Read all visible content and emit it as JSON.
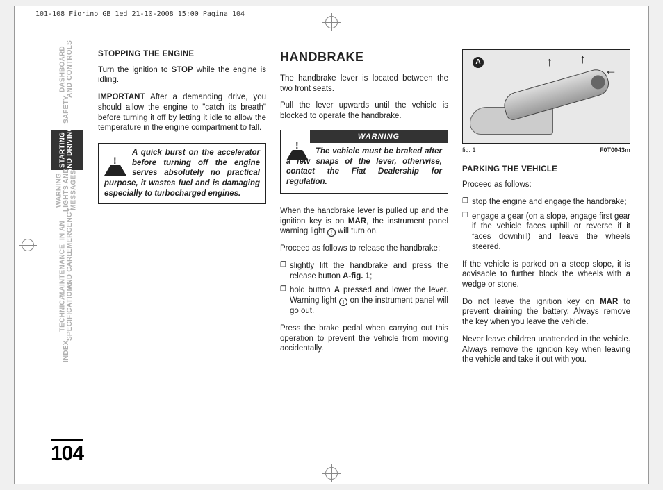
{
  "cropHeader": "101-108 Fiorino GB 1ed  21-10-2008  15:00  Pagina 104",
  "pageNumber": "104",
  "tabs": [
    {
      "label": "DASHBOARD\nAND CONTROLS",
      "active": false
    },
    {
      "label": "SAFETY",
      "active": false
    },
    {
      "label": "STARTING\nAND DRIVING",
      "active": true
    },
    {
      "label": "WARNING\nLIGHTS AND\nMESSAGES",
      "active": false
    },
    {
      "label": "IN AN\nEMERGENCY",
      "active": false
    },
    {
      "label": "MAINTENANCE\nAND CARE",
      "active": false
    },
    {
      "label": "TECHNICAL\nSPECIFICATIONS",
      "active": false
    },
    {
      "label": "INDEX",
      "active": false
    }
  ],
  "col1": {
    "h": "STOPPING THE ENGINE",
    "p1a": "Turn the ignition to ",
    "p1b": "STOP",
    "p1c": " while the engine is idling.",
    "p2a": "IMPORTANT",
    "p2b": " After a demanding drive, you should allow the engine to \"catch its breath\" before turning it off by letting it idle to allow the temperature in the engine compartment to fall.",
    "callout": "A quick burst on the accelerator before turning off the engine serves absolutely no practical purpose, it wastes fuel and is damaging especially to turbocharged engines."
  },
  "col2": {
    "title": "HANDBRAKE",
    "p1": "The handbrake lever is located between the two front seats.",
    "p2": "Pull the lever upwards until the vehicle is blocked to operate the handbrake.",
    "warnTitle": "WARNING",
    "warnBody": "The vehicle must be braked after a few snaps of the lever, otherwise, contact the Fiat Dealership for regulation.",
    "p3a": "When the handbrake lever is pulled up and the ignition key is on ",
    "p3b": "MAR",
    "p3c": ", the instrument panel warning light ",
    "p3d": " will turn on.",
    "p4": "Proceed as follows to release the handbrake:",
    "b1a": "slightly lift the handbrake and press the release button ",
    "b1b": "A-fig. 1",
    "b1c": ";",
    "b2a": "hold button ",
    "b2b": "A",
    "b2c": " pressed and lower the lever. Warning light ",
    "b2d": " on the instrument panel will go out.",
    "p5": "Press the brake pedal when carrying out this operation to prevent the vehicle from moving accidentally."
  },
  "col3": {
    "figLabel": "A",
    "figCap": "fig. 1",
    "figCode": "F0T0043m",
    "h": "PARKING THE VEHICLE",
    "p1": "Proceed as follows:",
    "b1": "stop the engine and engage the handbrake;",
    "b2": "engage a gear (on a slope, engage first gear if the vehicle faces uphill or reverse if it faces downhill) and leave the wheels steered.",
    "p2": "If the vehicle is parked on a steep slope, it is advisable to further block the wheels with a wedge or stone.",
    "p3a": "Do not leave the ignition key on ",
    "p3b": "MAR",
    "p3c": " to prevent draining the battery. Always remove the key when you leave the vehicle.",
    "p4": "Never leave children unattended in the vehicle. Always remove the ignition key when leaving the vehicle and take it out with you."
  }
}
